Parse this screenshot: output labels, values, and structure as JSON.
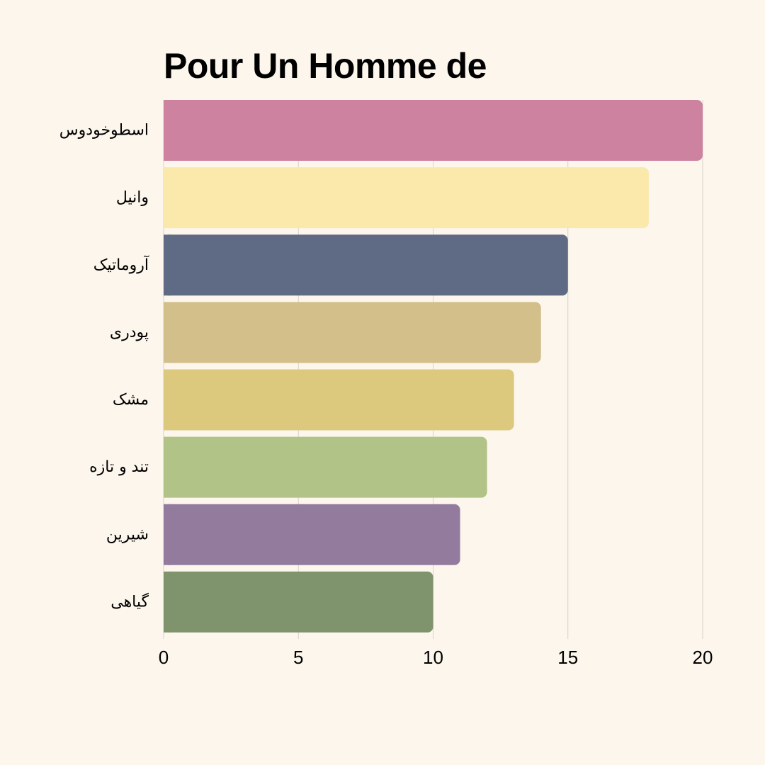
{
  "chart_data": {
    "type": "bar",
    "orientation": "horizontal",
    "title": "Pour Un Homme de",
    "xlabel": "",
    "ylabel": "",
    "categories": [
      "اسطوخودوس",
      "وانیل",
      "آروماتیک",
      "پودری",
      "مشک",
      "تند و تازه",
      "شیرین",
      "گیاهی"
    ],
    "values": [
      20,
      18,
      15,
      14,
      13,
      12,
      11,
      10
    ],
    "colors": [
      "#cd83a0",
      "#fae9aa",
      "#5f6b85",
      "#d2bf8a",
      "#dcc97d",
      "#b2c387",
      "#937b9d",
      "#7f936d"
    ],
    "xlim": [
      0,
      20
    ],
    "xticks": [
      "0",
      "5",
      "10",
      "15",
      "20"
    ],
    "grid": "vertical",
    "legend": "none"
  }
}
